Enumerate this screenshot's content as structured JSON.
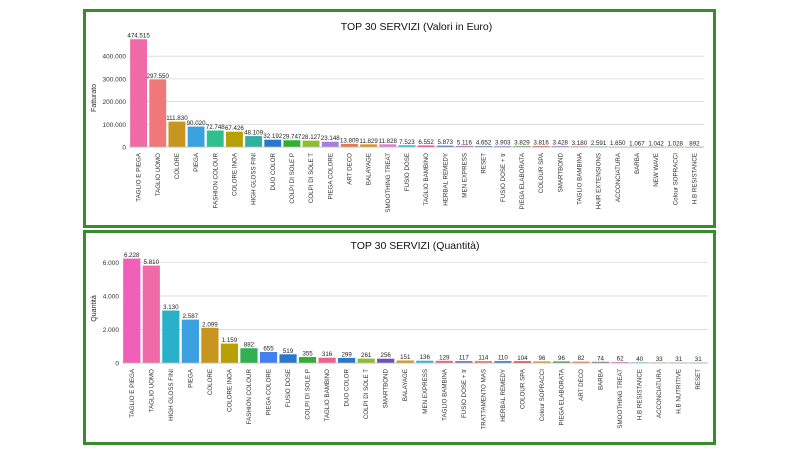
{
  "chart_data": [
    {
      "type": "bar",
      "title": "TOP 30 SERVIZI (Valori in Euro)",
      "xlabel": "",
      "ylabel": "Fatturato",
      "ylim": [
        0,
        480000
      ],
      "yticks": [
        0,
        100000,
        200000,
        300000,
        400000
      ],
      "ytick_labels": [
        "0",
        "100.000",
        "200.000",
        "300.000",
        "400.000"
      ],
      "grid": true,
      "categories": [
        "TAGLIO E PIEGA",
        "TAGLIO UOMO",
        "COLORE",
        "PIEGA",
        "FASHION COLOUR",
        "COLORE INOA",
        "HIGH GLOSS FINI",
        "DUO COLOR",
        "COLPI DI SOLE P",
        "COLPI DI SOLE T",
        "PIEGA COLORE",
        "ART DECO",
        "BALAYAGE",
        "SMOOTHING TREAT",
        "FUSIO DOSE",
        "TAGLIO BAMBINO",
        "HERBAL REMEDY",
        "MEN EXPRESS",
        "RESET",
        "FUSIO DOSE + tr",
        "PIEGA ELABORATA",
        "COLOUR SPA",
        "SMARTBOND",
        "TAGLIO BAMBINA",
        "HAIR EXTENSIONS",
        "ACCONCIATURA",
        "BARBA",
        "NEW WAVE",
        "Colour SOPRACCI",
        "H.B RESISTANCE"
      ],
      "values": [
        474515,
        297550,
        111830,
        90020,
        72748,
        67426,
        48109,
        32192,
        29747,
        28127,
        23148,
        13809,
        11829,
        11828,
        7523,
        6552,
        5873,
        5116,
        4652,
        3903,
        3829,
        3816,
        3428,
        3180,
        2591,
        1650,
        1067,
        1042,
        1028,
        892
      ],
      "value_labels": [
        "474.515",
        "297.550",
        "111.830",
        "90.020",
        "72.748",
        "67.426",
        "48.109",
        "32.192",
        "29.747",
        "28.127",
        "23.148",
        "13.809",
        "11.829",
        "11.828",
        "7.523",
        "6.552",
        "5.873",
        "5.116",
        "4.652",
        "3.903",
        "3.829",
        "3.816",
        "3.428",
        "3.180",
        "2.591",
        "1.650",
        "1.067",
        "1.042",
        "1.028",
        "892"
      ],
      "colors": [
        "#f06aa8",
        "#f07878",
        "#c8961e",
        "#3aa0e0",
        "#30c090",
        "#b8a000",
        "#30b0a0",
        "#2878d0",
        "#30b030",
        "#8cbe30",
        "#a97ce0",
        "#f07848",
        "#e8901e",
        "#ea78d0",
        "#2eb6e0",
        "#ff3090",
        "#4070d8",
        "#c060c0",
        "#5090d0",
        "#8070e0",
        "#50a050",
        "#e04040",
        "#7050c0",
        "#f06080",
        "#40a0a0",
        "#c08040",
        "#808080",
        "#4080f0",
        "#d0a020",
        "#30b0d0"
      ]
    },
    {
      "type": "bar",
      "title": "TOP 30 SERVIZI (Quantità)",
      "xlabel": "",
      "ylabel": "Quantità",
      "ylim": [
        0,
        6500
      ],
      "yticks": [
        0,
        2000,
        4000,
        6000
      ],
      "ytick_labels": [
        "0",
        "2.000",
        "4.000",
        "6.000"
      ],
      "grid": true,
      "categories": [
        "TAGLIO E PIEGA",
        "TAGLIO UOMO",
        "HIGH GLOSS FINI",
        "PIEGA",
        "COLORE",
        "COLORE INOA",
        "FASHION COLOUR",
        "PIEGA COLORE",
        "FUSIO DOSE",
        "COLPI DI SOLE P",
        "TAGLIO BAMBINO",
        "DUO COLOR",
        "COLPI DI SOLE T",
        "SMARTBOND",
        "BALAYAGE",
        "MEN EXPRESS",
        "TAGLIO BAMBINA",
        "FUSIO DOSE + tr",
        "TRATTAMENTO MAS",
        "HERBAL REMEDY",
        "COLOUR SPA",
        "Colour SOPRACCI",
        "PIEGA ELABORATA",
        "ART DECO",
        "BARBA",
        "SMOOTHING TREAT",
        "H.B RESISTANCE",
        "ACCONCIATURA",
        "H.B NUTRITIVE",
        "RESET"
      ],
      "values": [
        6228,
        5810,
        3130,
        2587,
        2099,
        1159,
        882,
        655,
        519,
        355,
        316,
        299,
        261,
        256,
        151,
        136,
        129,
        117,
        114,
        110,
        104,
        96,
        96,
        82,
        74,
        62,
        40,
        33,
        31,
        31
      ],
      "value_labels": [
        "6.228",
        "5.810",
        "3.130",
        "2.587",
        "2.099",
        "1.159",
        "882",
        "655",
        "519",
        "355",
        "316",
        "299",
        "261",
        "256",
        "151",
        "136",
        "129",
        "117",
        "114",
        "110",
        "104",
        "96",
        "96",
        "82",
        "74",
        "62",
        "40",
        "33",
        "31",
        "31"
      ],
      "colors": [
        "#f060b8",
        "#f06aa8",
        "#2ab0c8",
        "#3aa0e0",
        "#c8961e",
        "#b8a000",
        "#30b050",
        "#4080f0",
        "#2878d0",
        "#30b030",
        "#f06090",
        "#2878d0",
        "#8cbe30",
        "#7050c0",
        "#e8901e",
        "#2eb6e0",
        "#f06080",
        "#8070e0",
        "#f07848",
        "#4070d8",
        "#e04040",
        "#d0a020",
        "#50a050",
        "#f07848",
        "#808080",
        "#ea78d0",
        "#30b0d0",
        "#c08040",
        "#40a0a0",
        "#5090d0"
      ]
    }
  ]
}
